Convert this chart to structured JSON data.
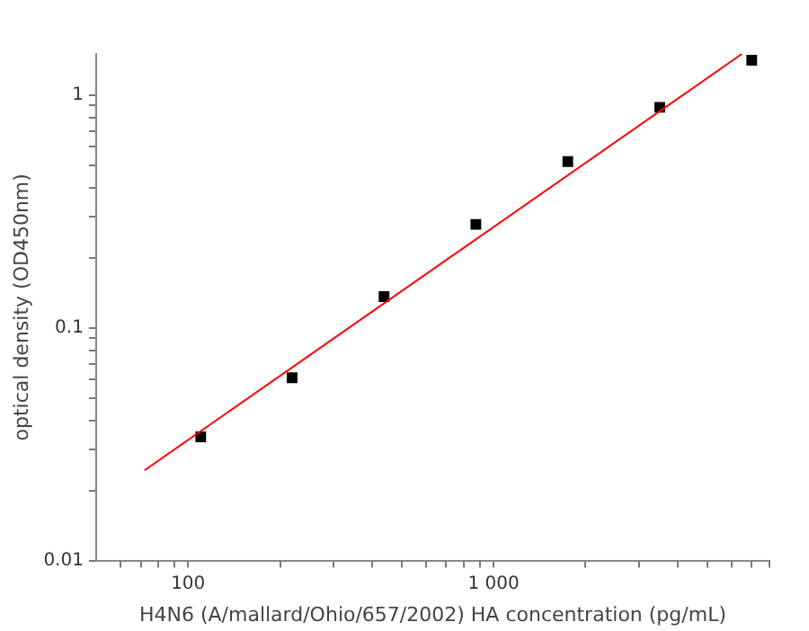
{
  "chart_data": {
    "type": "scatter",
    "xlabel": "H4N6 (A/mallard/Ohio/657/2002) HA concentration (pg/mL)",
    "ylabel": "optical density (OD450nm)",
    "log": "xy",
    "grid": false,
    "legend": false,
    "marker": "square",
    "xlim": [
      50,
      8000
    ],
    "ylim": [
      0.01,
      1.5
    ],
    "xticks": [
      {
        "value": 60,
        "label": null
      },
      {
        "value": 70,
        "label": null
      },
      {
        "value": 80,
        "label": null
      },
      {
        "value": 90,
        "label": null
      },
      100,
      {
        "value": 200,
        "label": null
      },
      {
        "value": 300,
        "label": null
      },
      {
        "value": 400,
        "label": null
      },
      {
        "value": 500,
        "label": null
      },
      {
        "value": 600,
        "label": null
      },
      {
        "value": 700,
        "label": null
      },
      {
        "value": 800,
        "label": null
      },
      {
        "value": 900,
        "label": null
      },
      {
        "value": 1000,
        "label": "1 000"
      },
      {
        "value": 2000,
        "label": null
      },
      {
        "value": 3000,
        "label": null
      },
      {
        "value": 4000,
        "label": null
      },
      {
        "value": 5000,
        "label": null
      },
      {
        "value": 6000,
        "label": null
      },
      {
        "value": 7000,
        "label": null
      },
      {
        "value": 8000,
        "label": null
      }
    ],
    "yticks": [
      0.01,
      {
        "value": 0.02,
        "label": null
      },
      {
        "value": 0.03,
        "label": null
      },
      {
        "value": 0.04,
        "label": null
      },
      {
        "value": 0.05,
        "label": null
      },
      {
        "value": 0.06,
        "label": null
      },
      {
        "value": 0.07,
        "label": null
      },
      {
        "value": 0.08,
        "label": null
      },
      {
        "value": 0.09,
        "label": null
      },
      0.1,
      {
        "value": 0.2,
        "label": null
      },
      {
        "value": 0.3,
        "label": null
      },
      {
        "value": 0.4,
        "label": null
      },
      {
        "value": 0.5,
        "label": null
      },
      {
        "value": 0.6,
        "label": null
      },
      {
        "value": 0.7,
        "label": null
      },
      {
        "value": 0.8,
        "label": null
      },
      {
        "value": 0.9,
        "label": null
      },
      1
    ],
    "series": [
      {
        "type": "scatter",
        "color": "#000000",
        "x": [
          110,
          219,
          438,
          875,
          1750,
          3500,
          7000
        ],
        "values": [
          0.034,
          0.061,
          0.136,
          0.278,
          0.517,
          0.885,
          1.41
        ]
      },
      {
        "type": "line",
        "color": "#ff0000",
        "marker": "none",
        "x": [
          72,
          6500
        ],
        "values": [
          0.0244,
          1.5
        ]
      }
    ]
  }
}
